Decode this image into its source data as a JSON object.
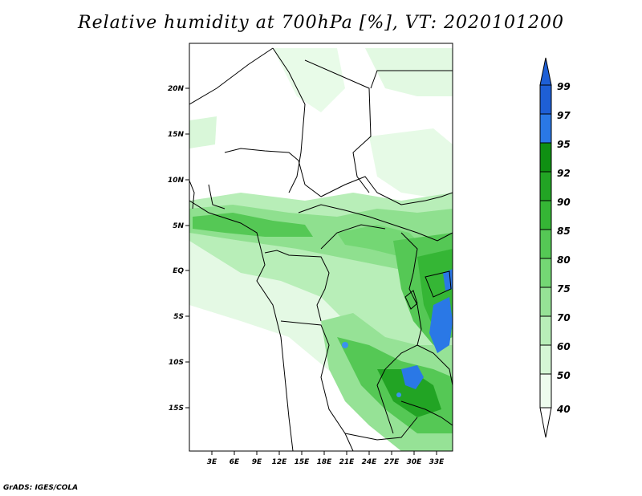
{
  "title": "Relative humidity at 700hPa [%], VT: 2020101200",
  "credit": "GrADS: IGES/COLA",
  "map": {
    "y_ticks": [
      "20N",
      "15N",
      "10N",
      "5N",
      "EQ",
      "5S",
      "10S",
      "15S"
    ],
    "x_ticks": [
      "3E",
      "6E",
      "9E",
      "12E",
      "15E",
      "18E",
      "21E",
      "24E",
      "27E",
      "30E",
      "33E"
    ],
    "extent": {
      "lon": [
        0,
        35
      ],
      "lat": [
        -20,
        25
      ]
    }
  },
  "colorbar": {
    "labels": [
      "99",
      "97",
      "95",
      "92",
      "90",
      "85",
      "80",
      "75",
      "70",
      "60",
      "50",
      "40"
    ],
    "colors": [
      "#1e5fd6",
      "#2a78e6",
      "#3b92ee",
      "#0f8f12",
      "#22a424",
      "#35b635",
      "#55c855",
      "#74d774",
      "#96e296",
      "#b8eeb8",
      "#d5f6d5",
      "#eefcee"
    ]
  },
  "colors": {
    "land_outline": "#000000",
    "green_light": "#d9f7d9",
    "green_mid": "#8fe08f",
    "green_dark": "#3fbf3f",
    "blue": "#2a78e6"
  }
}
